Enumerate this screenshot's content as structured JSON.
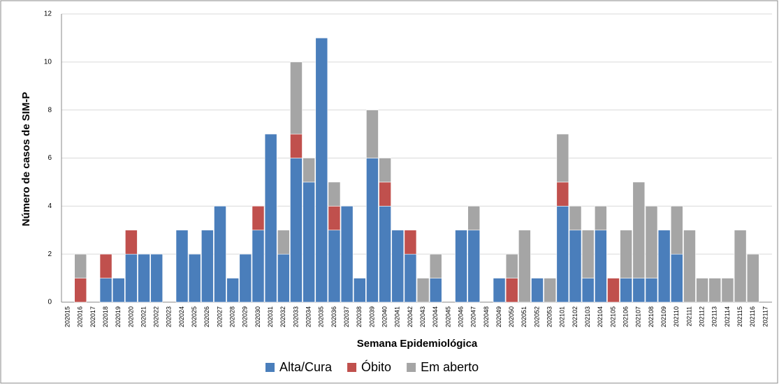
{
  "chart_data": {
    "type": "stacked_bar",
    "x_label": "Semana Epidemiológica",
    "y_label": "Número de casos de SIM-P",
    "categories": [
      "202015",
      "202016",
      "202017",
      "202018",
      "202019",
      "202020",
      "202021",
      "202022",
      "202023",
      "202024",
      "202025",
      "202026",
      "202027",
      "202028",
      "202029",
      "202030",
      "202031",
      "202032",
      "202033",
      "202034",
      "202035",
      "202036",
      "202037",
      "202038",
      "202039",
      "202040",
      "202041",
      "202042",
      "202043",
      "202044",
      "202045",
      "202046",
      "202047",
      "202048",
      "202049",
      "202050",
      "202051",
      "202052",
      "202053",
      "202101",
      "202102",
      "202103",
      "202104",
      "202105",
      "202106",
      "202107",
      "202108",
      "202109",
      "202110",
      "202111",
      "202112",
      "202113",
      "202114",
      "202115",
      "202116",
      "202117"
    ],
    "series": [
      {
        "name": "Alta/Cura",
        "color": "#4a7ebb",
        "values": [
          0,
          0,
          0,
          1,
          1,
          2,
          2,
          2,
          0,
          3,
          2,
          3,
          4,
          1,
          2,
          3,
          7,
          2,
          6,
          5,
          11,
          3,
          4,
          1,
          6,
          4,
          3,
          2,
          0,
          1,
          0,
          3,
          3,
          0,
          1,
          0,
          0,
          1,
          0,
          4,
          3,
          1,
          3,
          0,
          1,
          1,
          1,
          3,
          2,
          0,
          0,
          0,
          0,
          0,
          0,
          0
        ]
      },
      {
        "name": "Óbito",
        "color": "#c0504d",
        "values": [
          0,
          1,
          0,
          1,
          0,
          1,
          0,
          0,
          0,
          0,
          0,
          0,
          0,
          0,
          0,
          1,
          0,
          0,
          1,
          0,
          0,
          1,
          0,
          0,
          0,
          1,
          0,
          1,
          0,
          0,
          0,
          0,
          0,
          0,
          0,
          1,
          0,
          0,
          0,
          1,
          0,
          0,
          0,
          1,
          0,
          0,
          0,
          0,
          0,
          0,
          0,
          0,
          0,
          0,
          0,
          0
        ]
      },
      {
        "name": "Em aberto",
        "color": "#a5a5a5",
        "values": [
          0,
          1,
          0,
          0,
          0,
          0,
          0,
          0,
          0,
          0,
          0,
          0,
          0,
          0,
          0,
          0,
          0,
          1,
          3,
          1,
          0,
          1,
          0,
          0,
          2,
          1,
          0,
          0,
          1,
          1,
          0,
          0,
          1,
          0,
          0,
          1,
          3,
          0,
          1,
          2,
          1,
          2,
          1,
          0,
          2,
          4,
          3,
          0,
          2,
          3,
          1,
          1,
          1,
          3,
          2,
          0
        ]
      }
    ],
    "ylim": [
      0,
      12
    ],
    "yticks": [
      0,
      2,
      4,
      6,
      8,
      10,
      12
    ],
    "grid": true
  }
}
